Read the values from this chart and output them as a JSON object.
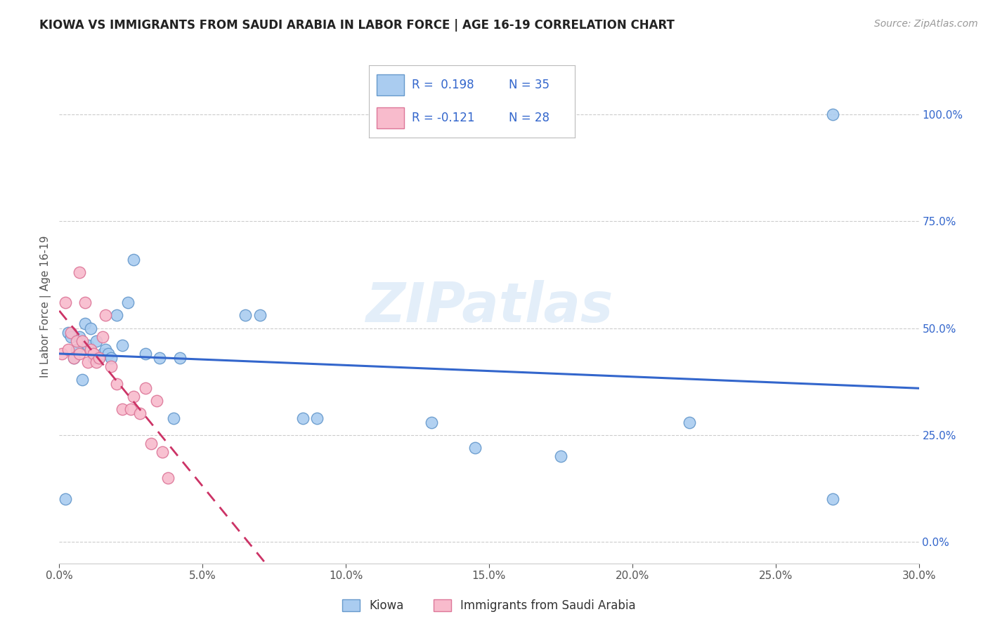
{
  "title": "KIOWA VS IMMIGRANTS FROM SAUDI ARABIA IN LABOR FORCE | AGE 16-19 CORRELATION CHART",
  "source": "Source: ZipAtlas.com",
  "ylabel": "In Labor Force | Age 16-19",
  "xlim": [
    0.0,
    0.3
  ],
  "ylim": [
    -0.05,
    1.15
  ],
  "xticks": [
    0.0,
    0.05,
    0.1,
    0.15,
    0.2,
    0.25,
    0.3
  ],
  "xticklabels": [
    "0.0%",
    "5.0%",
    "10.0%",
    "15.0%",
    "20.0%",
    "25.0%",
    "30.0%"
  ],
  "yticks_right": [
    0.0,
    0.25,
    0.5,
    0.75,
    1.0
  ],
  "ytick_right_labels": [
    "0.0%",
    "25.0%",
    "50.0%",
    "75.0%",
    "100.0%"
  ],
  "grid_color": "#cccccc",
  "background_color": "#ffffff",
  "kiowa_color": "#aaccf0",
  "kiowa_edge_color": "#6699cc",
  "saudi_color": "#f8bbcc",
  "saudi_edge_color": "#dd7799",
  "blue_line_color": "#3366cc",
  "pink_line_color": "#cc3366",
  "legend_label1": "Kiowa",
  "legend_label2": "Immigrants from Saudi Arabia",
  "watermark": "ZIPatlas",
  "kiowa_x": [
    0.002,
    0.003,
    0.004,
    0.005,
    0.006,
    0.007,
    0.008,
    0.009,
    0.01,
    0.011,
    0.012,
    0.013,
    0.014,
    0.015,
    0.016,
    0.017,
    0.018,
    0.02,
    0.022,
    0.024,
    0.026,
    0.03,
    0.035,
    0.04,
    0.042,
    0.065,
    0.07,
    0.085,
    0.09,
    0.13,
    0.145,
    0.175,
    0.22,
    0.27,
    0.27
  ],
  "kiowa_y": [
    0.1,
    0.49,
    0.48,
    0.43,
    0.45,
    0.48,
    0.38,
    0.51,
    0.46,
    0.5,
    0.43,
    0.47,
    0.43,
    0.44,
    0.45,
    0.44,
    0.43,
    0.53,
    0.46,
    0.56,
    0.66,
    0.44,
    0.43,
    0.29,
    0.43,
    0.53,
    0.53,
    0.29,
    0.29,
    0.28,
    0.22,
    0.2,
    0.28,
    0.1,
    1.0
  ],
  "saudi_x": [
    0.001,
    0.002,
    0.003,
    0.004,
    0.005,
    0.006,
    0.007,
    0.007,
    0.008,
    0.009,
    0.01,
    0.011,
    0.012,
    0.013,
    0.014,
    0.015,
    0.016,
    0.018,
    0.02,
    0.022,
    0.025,
    0.026,
    0.028,
    0.03,
    0.032,
    0.034,
    0.036,
    0.038
  ],
  "saudi_y": [
    0.44,
    0.56,
    0.45,
    0.49,
    0.43,
    0.47,
    0.44,
    0.63,
    0.47,
    0.56,
    0.42,
    0.45,
    0.44,
    0.42,
    0.43,
    0.48,
    0.53,
    0.41,
    0.37,
    0.31,
    0.31,
    0.34,
    0.3,
    0.36,
    0.23,
    0.33,
    0.21,
    0.15
  ]
}
